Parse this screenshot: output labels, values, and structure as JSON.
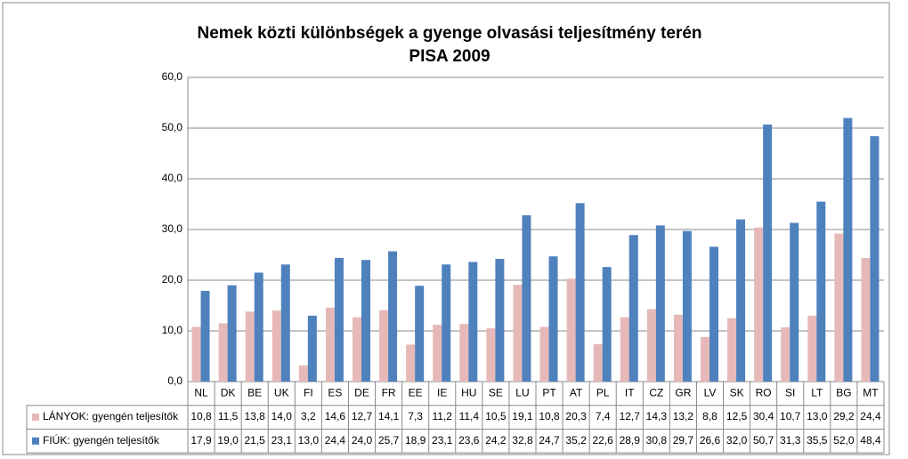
{
  "chart_data": {
    "type": "bar",
    "title": "Nemek közti különbségek a gyenge olvasási teljesítmény terén",
    "subtitle": "PISA 2009",
    "categories": [
      "NL",
      "DK",
      "BE",
      "UK",
      "FI",
      "ES",
      "DE",
      "FR",
      "EE",
      "IE",
      "HU",
      "SE",
      "LU",
      "PT",
      "AT",
      "PL",
      "IT",
      "CZ",
      "GR",
      "LV",
      "SK",
      "RO",
      "SI",
      "LT",
      "BG",
      "MT"
    ],
    "series": [
      {
        "name": "LÁNYOK: gyengén teljesítők",
        "color": "#e6b9b8",
        "values": [
          10.8,
          11.5,
          13.8,
          14.0,
          3.2,
          14.6,
          12.7,
          14.1,
          7.3,
          11.2,
          11.4,
          10.5,
          19.1,
          10.8,
          20.3,
          7.4,
          12.7,
          14.3,
          13.2,
          8.8,
          12.5,
          30.4,
          10.7,
          13.0,
          29.2,
          24.4
        ],
        "value_labels": [
          "10,8",
          "11,5",
          "13,8",
          "14,0",
          "3,2",
          "14,6",
          "12,7",
          "14,1",
          "7,3",
          "11,2",
          "11,4",
          "10,5",
          "19,1",
          "10,8",
          "20,3",
          "7,4",
          "12,7",
          "14,3",
          "13,2",
          "8,8",
          "12,5",
          "30,4",
          "10,7",
          "13,0",
          "29,2",
          "24,4"
        ]
      },
      {
        "name": "FIÚK: gyengén teljesítők",
        "color": "#4f81bd",
        "values": [
          17.9,
          19.0,
          21.5,
          23.1,
          13.0,
          24.4,
          24.0,
          25.7,
          18.9,
          23.1,
          23.6,
          24.2,
          32.8,
          24.7,
          35.2,
          22.6,
          28.9,
          30.8,
          29.7,
          26.6,
          32.0,
          50.7,
          31.3,
          35.5,
          52.0,
          48.4
        ],
        "value_labels": [
          "17,9",
          "19,0",
          "21,5",
          "23,1",
          "13,0",
          "24,4",
          "24,0",
          "25,7",
          "18,9",
          "23,1",
          "23,6",
          "24,2",
          "32,8",
          "24,7",
          "35,2",
          "22,6",
          "28,9",
          "30,8",
          "29,7",
          "26,6",
          "32,0",
          "50,7",
          "31,3",
          "35,5",
          "52,0",
          "48,4"
        ]
      }
    ],
    "ylim": [
      0,
      60
    ],
    "yticks": [
      {
        "value": 0,
        "label": "0,0"
      },
      {
        "value": 10,
        "label": "10,0"
      },
      {
        "value": 20,
        "label": "20,0"
      },
      {
        "value": 30,
        "label": "30,0"
      },
      {
        "value": 40,
        "label": "40,0"
      },
      {
        "value": 50,
        "label": "50,0"
      },
      {
        "value": 60,
        "label": "60,0"
      }
    ],
    "grid": true
  }
}
